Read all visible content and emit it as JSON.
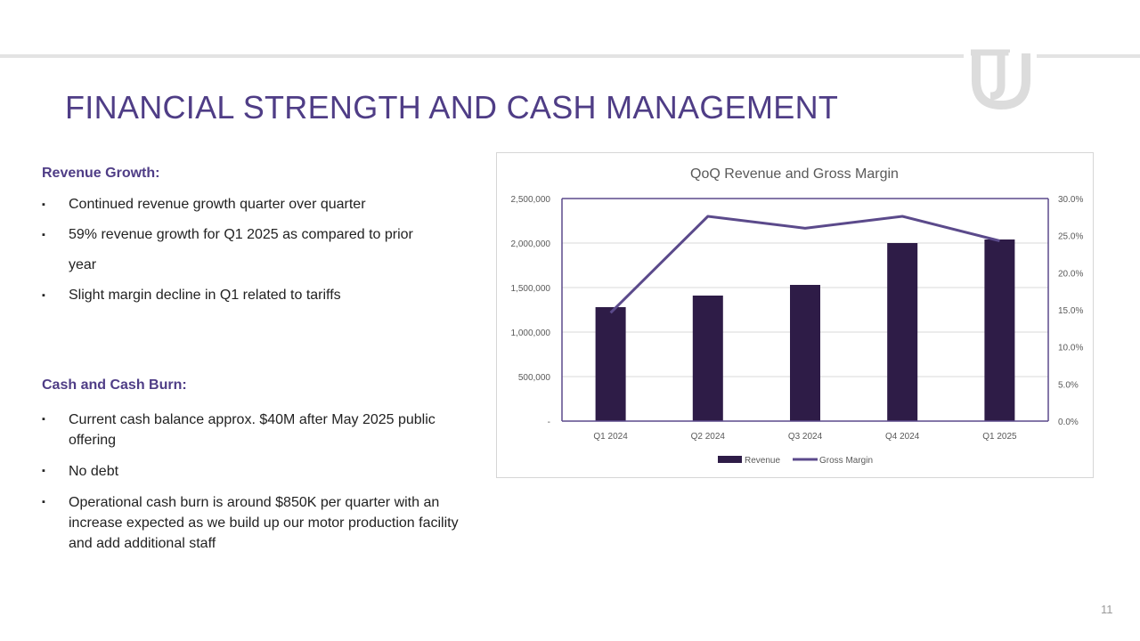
{
  "slide": {
    "title": "FINANCIAL STRENGTH AND CASH MANAGEMENT",
    "page_number": "11",
    "logo": "company-logo",
    "accent_color": "#4f3d86"
  },
  "revenue_section": {
    "heading": "Revenue Growth:",
    "bullets": [
      "Continued revenue growth quarter over quarter",
      "59% revenue growth for Q1 2025 as compared to prior",
      "year",
      "Slight margin decline in Q1 related to tariffs"
    ]
  },
  "cash_section": {
    "heading": "Cash and Cash Burn:",
    "bullets": [
      "Current cash balance approx. $40M after May 2025 public offering",
      "No debt",
      "Operational cash burn is around $850K per quarter with an increase expected as we build up our motor production facility and add additional staff"
    ]
  },
  "bullet_symbol": "▪",
  "chart_data": {
    "type": "bar",
    "title": "QoQ Revenue and Gross Margin",
    "categories": [
      "Q1 2024",
      "Q2 2024",
      "Q3 2024",
      "Q4 2024",
      "Q1 2025"
    ],
    "series": [
      {
        "name": "Revenue",
        "type": "bar",
        "axis": "left",
        "color": "#2e1c47",
        "values": [
          1280000,
          1410000,
          1530000,
          2000000,
          2040000
        ]
      },
      {
        "name": "Gross Margin",
        "type": "line",
        "axis": "right",
        "color": "#5b4a8b",
        "values": [
          14.6,
          27.6,
          26.0,
          27.6,
          24.3
        ]
      }
    ],
    "y_left": {
      "min": 0,
      "max": 2500000,
      "ticks": [
        0,
        500000,
        1000000,
        1500000,
        2000000,
        2500000
      ],
      "tick_labels": [
        "-",
        "500,000",
        "1,000,000",
        "1,500,000",
        "2,000,000",
        "2,500,000"
      ]
    },
    "y_right": {
      "min": 0,
      "max": 30,
      "ticks": [
        0,
        5,
        10,
        15,
        20,
        25,
        30
      ],
      "tick_labels": [
        "0.0%",
        "5.0%",
        "10.0%",
        "15.0%",
        "20.0%",
        "25.0%",
        "30.0%"
      ]
    },
    "legend": {
      "position": "bottom",
      "entries": [
        "Revenue",
        "Gross Margin"
      ]
    },
    "grid": true
  }
}
